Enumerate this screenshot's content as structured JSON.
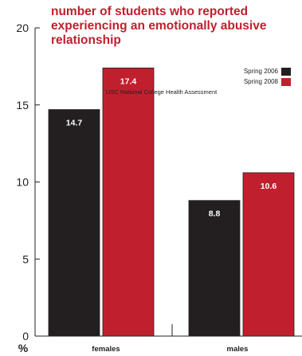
{
  "chart_data": {
    "type": "bar",
    "title_lines": [
      "number of students who reported",
      "experiencing an emotionally abusive",
      "relationship"
    ],
    "ylabel": "%",
    "ylim": [
      0,
      20
    ],
    "yticks": [
      0,
      5,
      10,
      15,
      20
    ],
    "categories": [
      "females",
      "males"
    ],
    "series": [
      {
        "name": "Spring 2006",
        "color": "#231f20",
        "values": [
          14.7,
          8.8
        ]
      },
      {
        "name": "Spring 2008",
        "color": "#c0202e",
        "values": [
          17.4,
          10.6
        ]
      }
    ],
    "value_labels": [
      [
        "14.7",
        "8.8"
      ],
      [
        "17.4",
        "10.6"
      ]
    ],
    "source_note": "USC National College Health Assessment",
    "legend_position": "top-right",
    "grid": false
  }
}
